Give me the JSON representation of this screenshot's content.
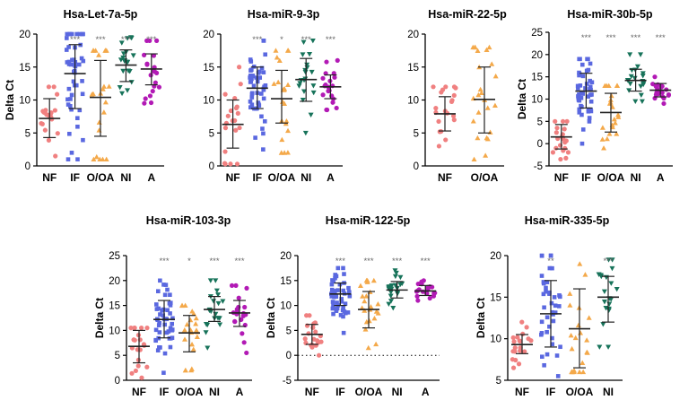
{
  "colors": {
    "NF": "#f08080",
    "IF": "#5a68e0",
    "O/OA": "#f4a94a",
    "NI": "#17735a",
    "A": "#b21ab5",
    "axis": "#000000",
    "errorbar": "#222222",
    "stars": "#666666",
    "zeroline": "#000000"
  },
  "chart_data": [
    {
      "id": "let7a",
      "type": "scatter",
      "title": "Hsa-Let-7a-5p",
      "xlabel": "",
      "ylabel": "Delta Ct",
      "ylim": [
        0,
        20
      ],
      "yticks": [
        "0",
        "5",
        "10",
        "15",
        "20"
      ],
      "yticks_values": [
        0,
        5,
        10,
        15,
        20
      ],
      "categories": [
        "NF",
        "IF",
        "O/OA",
        "NI",
        "A"
      ],
      "significance": [
        "",
        "***",
        "***",
        "***",
        "***"
      ],
      "groups": [
        {
          "name": "NF",
          "mean": 7.2,
          "sd_low": 4.3,
          "sd_high": 10.2,
          "n": 20,
          "min": 1.5,
          "max": 12.0
        },
        {
          "name": "IF",
          "mean": 14.0,
          "sd_low": 8.7,
          "sd_high": 18.4,
          "n": 48,
          "min": 1.0,
          "max": 20.0
        },
        {
          "name": "O/OA",
          "mean": 10.4,
          "sd_low": 4.5,
          "sd_high": 16.0,
          "n": 22,
          "min": 1.0,
          "max": 17.5
        },
        {
          "name": "NI",
          "mean": 15.3,
          "sd_low": 12.8,
          "sd_high": 17.6,
          "n": 20,
          "min": 11.0,
          "max": 19.5
        },
        {
          "name": "A",
          "mean": 14.7,
          "sd_low": 12.3,
          "sd_high": 17.0,
          "n": 20,
          "min": 9.5,
          "max": 19.0
        }
      ]
    },
    {
      "id": "mir9",
      "type": "scatter",
      "title": "Hsa-miR-9-3p",
      "xlabel": "",
      "ylabel": "",
      "ylim": [
        0,
        20
      ],
      "yticks": [
        "0",
        "5",
        "10",
        "15",
        "20"
      ],
      "yticks_values": [
        0,
        5,
        10,
        15,
        20
      ],
      "categories": [
        "NF",
        "IF",
        "O/OA",
        "NI",
        "A"
      ],
      "significance": [
        "",
        "***",
        "*",
        "***",
        "***"
      ],
      "groups": [
        {
          "name": "NF",
          "mean": 6.3,
          "sd_low": 2.7,
          "sd_high": 10.0,
          "n": 20,
          "min": 0.3,
          "max": 15.0
        },
        {
          "name": "IF",
          "mean": 11.8,
          "sd_low": 8.7,
          "sd_high": 15.0,
          "n": 48,
          "min": 2.5,
          "max": 19.0
        },
        {
          "name": "O/OA",
          "mean": 10.2,
          "sd_low": 6.5,
          "sd_high": 14.5,
          "n": 22,
          "min": 2.0,
          "max": 17.5
        },
        {
          "name": "NI",
          "mean": 13.1,
          "sd_low": 9.8,
          "sd_high": 16.3,
          "n": 20,
          "min": 5.0,
          "max": 19.0
        },
        {
          "name": "A",
          "mean": 12.0,
          "sd_low": 10.2,
          "sd_high": 13.8,
          "n": 20,
          "min": 8.5,
          "max": 16.0
        }
      ]
    },
    {
      "id": "mir22",
      "type": "scatter",
      "title": "Hsa-miR-22-5p",
      "xlabel": "",
      "ylabel": "",
      "ylim": [
        0,
        20
      ],
      "yticks": [
        "0",
        "5",
        "10",
        "15",
        "20"
      ],
      "yticks_values": [
        0,
        5,
        10,
        15,
        20
      ],
      "categories": [
        "NF",
        "O/OA"
      ],
      "significance": [
        "",
        ""
      ],
      "groups": [
        {
          "name": "NF",
          "mean": 7.9,
          "sd_low": 5.3,
          "sd_high": 10.5,
          "n": 20,
          "min": 3.0,
          "max": 12.0
        },
        {
          "name": "O/OA",
          "mean": 10.1,
          "sd_low": 5.0,
          "sd_high": 15.0,
          "n": 24,
          "min": 1.0,
          "max": 18.0
        }
      ]
    },
    {
      "id": "mir30b",
      "type": "scatter",
      "title": "Hsa-miR-30b-5p",
      "xlabel": "",
      "ylabel": "Delta Ct",
      "ylim": [
        -5,
        25
      ],
      "yticks": [
        "-5",
        "0",
        "5",
        "10",
        "15",
        "20",
        "25"
      ],
      "yticks_values": [
        -5,
        0,
        5,
        10,
        15,
        20,
        25
      ],
      "categories": [
        "NF",
        "IF",
        "O/OA",
        "NI",
        "A"
      ],
      "significance": [
        "",
        "***",
        "***",
        "***",
        "***"
      ],
      "groups": [
        {
          "name": "NF",
          "mean": 1.5,
          "sd_low": -1.2,
          "sd_high": 4.3,
          "n": 20,
          "min": -3.5,
          "max": 5.0
        },
        {
          "name": "IF",
          "mean": 11.8,
          "sd_low": 8.0,
          "sd_high": 15.8,
          "n": 48,
          "min": 0.0,
          "max": 19.0
        },
        {
          "name": "O/OA",
          "mean": 7.0,
          "sd_low": 2.6,
          "sd_high": 11.3,
          "n": 22,
          "min": -1.0,
          "max": 13.0
        },
        {
          "name": "NI",
          "mean": 14.2,
          "sd_low": 11.8,
          "sd_high": 16.7,
          "n": 20,
          "min": 9.5,
          "max": 20.0
        },
        {
          "name": "A",
          "mean": 12.0,
          "sd_low": 10.5,
          "sd_high": 13.5,
          "n": 20,
          "min": 9.0,
          "max": 15.0
        }
      ]
    },
    {
      "id": "mir103",
      "type": "scatter",
      "title": "Hsa-miR-103-3p",
      "xlabel": "",
      "ylabel": "Delta Ct",
      "ylim": [
        0,
        25
      ],
      "yticks": [
        "0",
        "5",
        "10",
        "15",
        "20",
        "25"
      ],
      "yticks_values": [
        0,
        5,
        10,
        15,
        20,
        25
      ],
      "categories": [
        "NF",
        "IF",
        "O/OA",
        "NI",
        "A"
      ],
      "significance": [
        "",
        "***",
        "*",
        "***",
        "***"
      ],
      "groups": [
        {
          "name": "NF",
          "mean": 6.8,
          "sd_low": 3.5,
          "sd_high": 10.0,
          "n": 20,
          "min": 0.5,
          "max": 10.5
        },
        {
          "name": "IF",
          "mean": 12.2,
          "sd_low": 8.5,
          "sd_high": 16.0,
          "n": 48,
          "min": 1.5,
          "max": 20.0
        },
        {
          "name": "O/OA",
          "mean": 9.5,
          "sd_low": 5.7,
          "sd_high": 13.0,
          "n": 22,
          "min": 2.0,
          "max": 15.0
        },
        {
          "name": "NI",
          "mean": 14.2,
          "sd_low": 11.8,
          "sd_high": 16.8,
          "n": 20,
          "min": 6.5,
          "max": 20.0
        },
        {
          "name": "A",
          "mean": 13.5,
          "sd_low": 10.8,
          "sd_high": 16.0,
          "n": 20,
          "min": 5.5,
          "max": 19.0
        }
      ]
    },
    {
      "id": "mir122",
      "type": "scatter",
      "title": "Hsa-miR-122-5p",
      "xlabel": "",
      "ylabel": "Delta Ct",
      "ylim": [
        -5,
        20
      ],
      "yticks": [
        "-5",
        "0",
        "5",
        "10",
        "15",
        "20"
      ],
      "yticks_values": [
        -5,
        0,
        5,
        10,
        15,
        20
      ],
      "zero_line": true,
      "categories": [
        "NF",
        "IF",
        "O/OA",
        "NI",
        "A"
      ],
      "significance": [
        "",
        "***",
        "***",
        "***",
        "***"
      ],
      "groups": [
        {
          "name": "NF",
          "mean": 4.2,
          "sd_low": 2.2,
          "sd_high": 6.2,
          "n": 20,
          "min": 0.0,
          "max": 8.0
        },
        {
          "name": "IF",
          "mean": 12.3,
          "sd_low": 10.0,
          "sd_high": 14.5,
          "n": 48,
          "min": 4.5,
          "max": 17.5
        },
        {
          "name": "O/OA",
          "mean": 9.2,
          "sd_low": 5.5,
          "sd_high": 12.8,
          "n": 22,
          "min": 1.5,
          "max": 15.0
        },
        {
          "name": "NI",
          "mean": 13.1,
          "sd_low": 11.5,
          "sd_high": 14.8,
          "n": 20,
          "min": 9.5,
          "max": 17.0
        },
        {
          "name": "A",
          "mean": 12.9,
          "sd_low": 12.0,
          "sd_high": 14.0,
          "n": 20,
          "min": 11.0,
          "max": 15.0
        }
      ]
    },
    {
      "id": "mir335",
      "type": "scatter",
      "title": "Hsa-miR-335-5p",
      "xlabel": "",
      "ylabel": "Delta Ct",
      "ylim": [
        5,
        20
      ],
      "yticks": [
        "5",
        "10",
        "15",
        "20"
      ],
      "yticks_values": [
        5,
        10,
        15,
        20
      ],
      "categories": [
        "NF",
        "IF",
        "O/OA",
        "NI"
      ],
      "significance": [
        "",
        "**",
        "",
        "***"
      ],
      "groups": [
        {
          "name": "NF",
          "mean": 9.3,
          "sd_low": 8.2,
          "sd_high": 10.5,
          "n": 20,
          "min": 6.5,
          "max": 12.0
        },
        {
          "name": "IF",
          "mean": 13.0,
          "sd_low": 9.0,
          "sd_high": 17.0,
          "n": 40,
          "min": 5.5,
          "max": 20.0
        },
        {
          "name": "O/OA",
          "mean": 11.2,
          "sd_low": 6.5,
          "sd_high": 16.0,
          "n": 22,
          "min": 6.0,
          "max": 19.0
        },
        {
          "name": "NI",
          "mean": 15.0,
          "sd_low": 12.0,
          "sd_high": 17.5,
          "n": 20,
          "min": 9.0,
          "max": 19.5
        }
      ]
    }
  ]
}
